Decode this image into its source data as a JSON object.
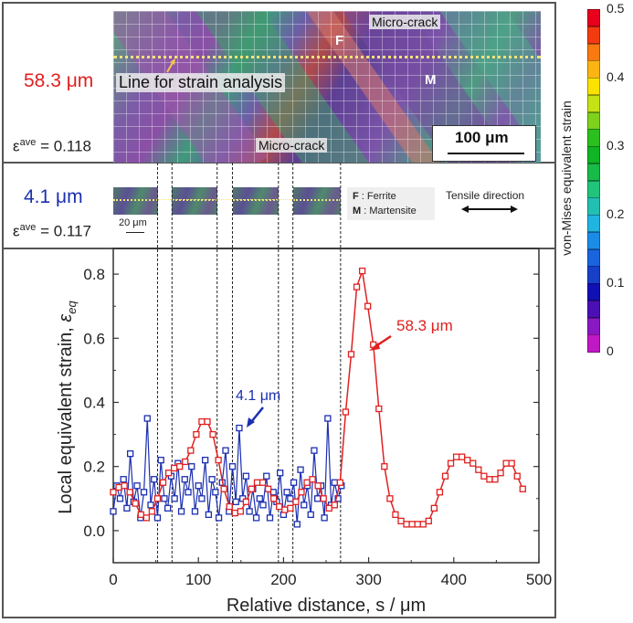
{
  "panels": {
    "top": {
      "size_label": "58.3 μm",
      "eps_symbol": "ε",
      "eps_sup": "ave",
      "eps_value": " = 0.118",
      "image_annotations": {
        "line_label": "Line for strain analysis",
        "crack_label_1": "Micro-crack",
        "crack_label_2": "Micro-crack",
        "ferrite_marker": "F",
        "martensite_marker": "M",
        "scale_bar": "100 μm"
      }
    },
    "middle": {
      "size_label": "4.1 μm",
      "eps_symbol": "ε",
      "eps_sup": "ave",
      "eps_value": " = 0.117",
      "scale_bar": "20 μm",
      "legend": {
        "f_key": "F",
        "f_desc": " : Ferrite",
        "m_key": "M",
        "m_desc": " : Martensite"
      },
      "tensile_label": "Tensile direction"
    }
  },
  "colorbar": {
    "title": "von-Mises equivalent strain",
    "ticks": [
      "0.5",
      "0.4",
      "0.3",
      "0.2",
      "0.1",
      "0"
    ],
    "range": [
      0,
      0.5
    ],
    "colors": [
      "#e8001c",
      "#f43a10",
      "#f87a10",
      "#fcb414",
      "#fce200",
      "#c4e214",
      "#7ed21c",
      "#2cc01e",
      "#10b424",
      "#18ba48",
      "#20c47a",
      "#22c0b0",
      "#20b4e0",
      "#1a8ce8",
      "#1a64e0",
      "#1640c8",
      "#1010b4",
      "#4a10b4",
      "#8a18c4",
      "#c018c4"
    ]
  },
  "chart_data": {
    "type": "line",
    "title": "",
    "xlabel": "Relative distance, s / μm",
    "ylabel_main": "Local equivalent strain, ",
    "ylabel_symbol": "ε",
    "ylabel_sub": "eq",
    "xlim": [
      0,
      500
    ],
    "ylim": [
      -0.1,
      0.88
    ],
    "xticks": [
      0,
      100,
      200,
      300,
      400,
      500
    ],
    "yticks": [
      0.0,
      0.2,
      0.4,
      0.6,
      0.8
    ],
    "xtick_labels": [
      "0",
      "100",
      "200",
      "300",
      "400",
      "500"
    ],
    "ytick_labels": [
      "0.0",
      "0.2",
      "0.4",
      "0.6",
      "0.8"
    ],
    "grid": false,
    "dashed_vlines": [
      52,
      69,
      122,
      140,
      194,
      211,
      267
    ],
    "annotations": [
      {
        "text": "58.3 μm",
        "series": "58.3 μm",
        "x": 302,
        "y": 0.58
      },
      {
        "text": "4.1 μm",
        "series": "4.1 μm",
        "x": 160,
        "y": 0.33
      }
    ],
    "series": [
      {
        "name": "58.3 μm",
        "color": "#e02020",
        "marker": "square-open",
        "x": [
          0,
          6.5,
          13,
          19.5,
          26,
          32.5,
          39,
          45.5,
          52,
          58.5,
          65,
          71.5,
          78,
          84.5,
          91,
          97.5,
          104,
          110.5,
          117,
          123.5,
          130,
          136.5,
          143,
          149.5,
          156,
          162.5,
          169,
          175.5,
          182,
          188.5,
          195,
          201.5,
          208,
          214.5,
          221,
          227.5,
          234,
          240.5,
          247,
          253.5,
          260,
          266.5,
          273,
          279.5,
          286,
          292.5,
          299,
          305.5,
          312,
          318.5,
          325,
          331.5,
          338,
          344.5,
          351,
          357.5,
          364,
          370.5,
          377,
          383.5,
          390,
          396.5,
          403,
          409.5,
          416,
          422.5,
          429,
          435.5,
          442,
          448.5,
          455,
          461.5,
          468,
          474.5,
          481
        ],
        "y": [
          0.12,
          0.135,
          0.14,
          0.12,
          0.085,
          0.05,
          0.04,
          0.06,
          0.1,
          0.15,
          0.18,
          0.195,
          0.2,
          0.215,
          0.25,
          0.3,
          0.34,
          0.34,
          0.3,
          0.22,
          0.13,
          0.075,
          0.055,
          0.06,
          0.09,
          0.13,
          0.15,
          0.15,
          0.13,
          0.1,
          0.075,
          0.065,
          0.07,
          0.09,
          0.12,
          0.15,
          0.16,
          0.14,
          0.1,
          0.07,
          0.08,
          0.15,
          0.37,
          0.55,
          0.76,
          0.81,
          0.7,
          0.58,
          0.38,
          0.2,
          0.1,
          0.05,
          0.03,
          0.02,
          0.02,
          0.02,
          0.02,
          0.03,
          0.07,
          0.12,
          0.17,
          0.21,
          0.23,
          0.23,
          0.22,
          0.21,
          0.19,
          0.17,
          0.16,
          0.16,
          0.18,
          0.21,
          0.21,
          0.17,
          0.13
        ]
      },
      {
        "name": "4.1 μm",
        "color": "#1b2fb0",
        "marker": "square-open",
        "x": [
          0,
          4,
          8,
          12,
          16,
          20,
          24,
          28,
          32,
          36,
          40,
          44,
          48,
          52,
          56,
          60,
          64,
          68,
          72,
          76,
          80,
          84,
          88,
          92,
          96,
          100,
          104,
          108,
          112,
          116,
          120,
          124,
          128,
          132,
          136,
          140,
          144,
          148,
          152,
          156,
          160,
          164,
          168,
          172,
          176,
          180,
          184,
          188,
          192,
          196,
          200,
          204,
          208,
          212,
          216,
          220,
          224,
          228,
          232,
          236,
          240,
          244,
          248,
          252,
          256,
          260,
          264,
          268
        ],
        "y": [
          0.06,
          0.14,
          0.1,
          0.16,
          0.07,
          0.24,
          0.09,
          0.14,
          0.04,
          0.12,
          0.35,
          0.08,
          0.16,
          0.04,
          0.22,
          0.1,
          0.07,
          0.17,
          0.1,
          0.21,
          0.06,
          0.16,
          0.12,
          0.2,
          0.06,
          0.14,
          0.1,
          0.22,
          0.05,
          0.16,
          0.12,
          0.04,
          0.15,
          0.25,
          0.06,
          0.2,
          0.09,
          0.32,
          0.1,
          0.17,
          0.06,
          0.13,
          0.04,
          0.1,
          0.08,
          0.17,
          0.04,
          0.12,
          0.09,
          0.18,
          0.05,
          0.12,
          0.1,
          0.15,
          0.02,
          0.19,
          0.08,
          0.14,
          0.05,
          0.25,
          0.1,
          0.14,
          0.04,
          0.35,
          0.08,
          0.15,
          0.1,
          0.14
        ]
      }
    ]
  }
}
